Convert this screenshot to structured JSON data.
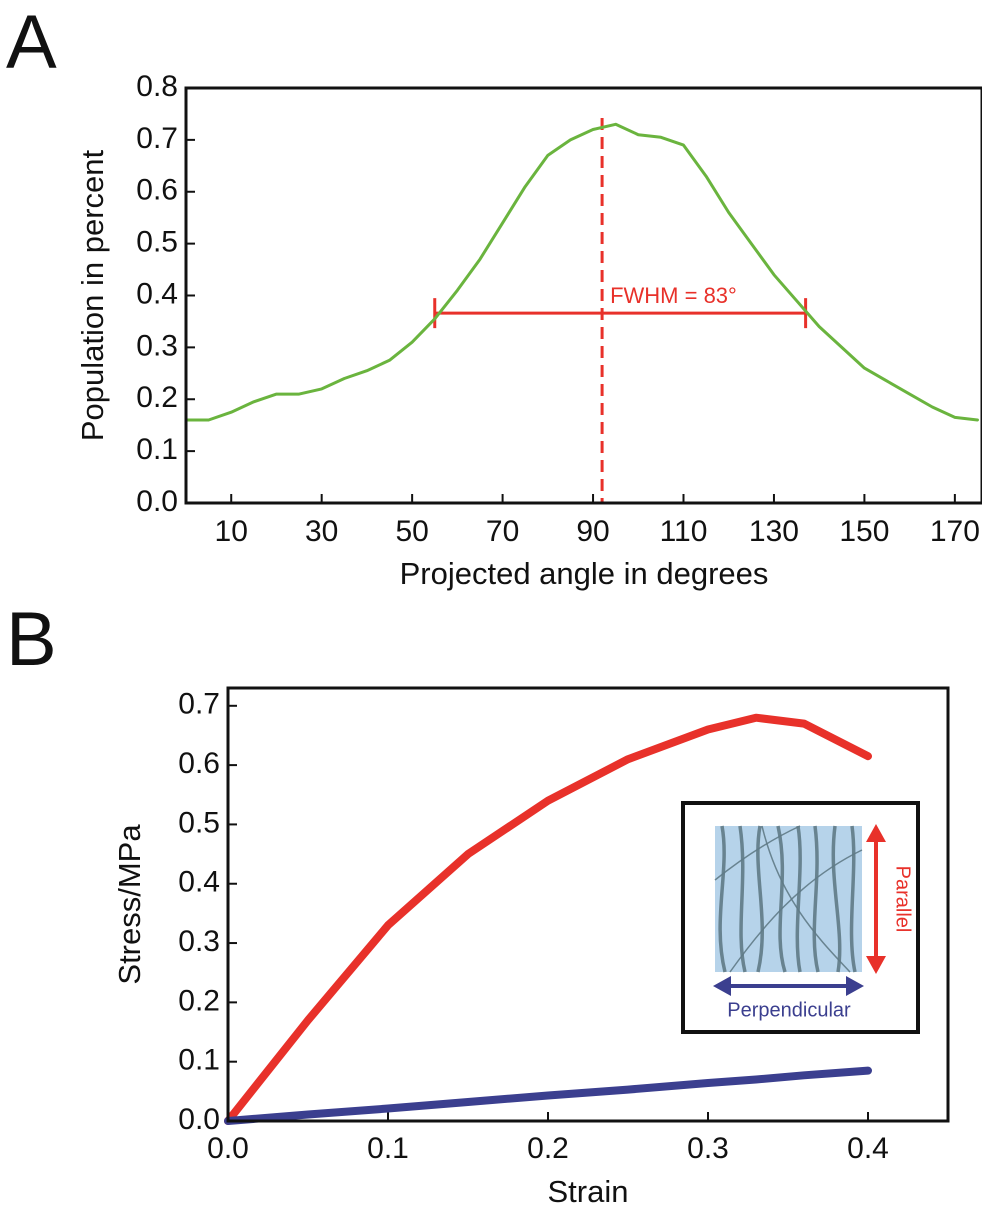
{
  "chart_data": [
    {
      "type": "line",
      "panel_label": "A",
      "x_label": "Projected angle in degrees",
      "y_label": "Population in percent",
      "xlim": [
        0,
        176
      ],
      "ylim": [
        0,
        0.8
      ],
      "xticks": [
        10,
        30,
        50,
        70,
        90,
        110,
        130,
        150,
        170
      ],
      "yticks": [
        {
          "value": 0,
          "label": "0.0"
        },
        0.1,
        0.2,
        0.3,
        0.4,
        0.5,
        0.6,
        0.7,
        0.8
      ],
      "x": [
        0,
        5,
        10,
        15,
        20,
        25,
        30,
        35,
        40,
        45,
        50,
        55,
        60,
        65,
        70,
        75,
        80,
        85,
        90,
        95,
        100,
        105,
        110,
        115,
        120,
        125,
        130,
        135,
        140,
        145,
        150,
        155,
        160,
        165,
        170,
        175
      ],
      "series": [
        {
          "color": "#6ab43e",
          "values": [
            0.16,
            0.16,
            0.175,
            0.195,
            0.21,
            0.21,
            0.22,
            0.24,
            0.255,
            0.275,
            0.31,
            0.355,
            0.41,
            0.47,
            0.54,
            0.61,
            0.67,
            0.7,
            0.72,
            0.73,
            0.71,
            0.705,
            0.69,
            0.63,
            0.56,
            0.5,
            0.44,
            0.39,
            0.34,
            0.3,
            0.26,
            0.235,
            0.21,
            0.185,
            0.165,
            0.16
          ]
        }
      ],
      "vline": {
        "x": 92,
        "color": "#e8312a",
        "style": "dashed"
      },
      "annotations": [
        {
          "text": "FWHM = 83°",
          "x_start": 55,
          "x_end": 137,
          "y": 0.366,
          "color": "#e8312a"
        }
      ]
    },
    {
      "type": "line",
      "panel_label": "B",
      "x_label": "Strain",
      "y_label": "Stress/MPa",
      "xlim": [
        0,
        0.45
      ],
      "ylim": [
        0,
        0.73
      ],
      "xticks": [
        {
          "value": 0,
          "label": "0.0"
        },
        0.1,
        0.2,
        0.3,
        0.4
      ],
      "yticks": [
        {
          "value": 0,
          "label": "0.0"
        },
        0.1,
        0.2,
        0.3,
        0.4,
        0.5,
        0.6,
        0.7
      ],
      "x": [
        0,
        0.05,
        0.1,
        0.15,
        0.2,
        0.25,
        0.3,
        0.33,
        0.36,
        0.4
      ],
      "series": [
        {
          "color": "#e8312a",
          "values": [
            0,
            0.17,
            0.33,
            0.45,
            0.54,
            0.61,
            0.66,
            0.68,
            0.67,
            0.615
          ]
        },
        {
          "color": "#3b3f8f",
          "values": [
            0,
            0.011,
            0.021,
            0.032,
            0.043,
            0.053,
            0.064,
            0.07,
            0.077,
            0.085
          ]
        }
      ],
      "inset": {
        "parallel": "Parallel",
        "perpendicular": "Perpendicular",
        "parallel_color": "#e8312a",
        "perpendicular_color": "#3b3f8f"
      }
    }
  ]
}
